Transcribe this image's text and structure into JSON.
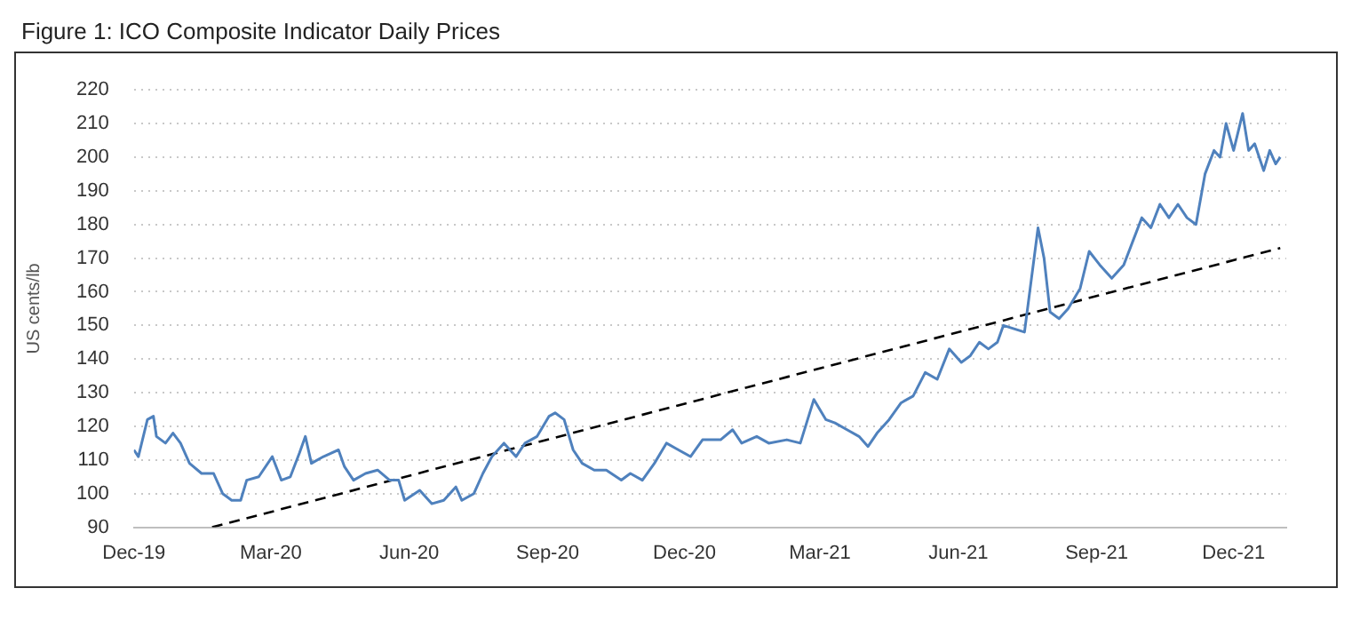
{
  "chart_data": {
    "type": "line",
    "title": "Figure 1: ICO Composite Indicator Daily Prices",
    "ylabel": "US cents/lb",
    "xlim": [
      "2019-12-01",
      "2022-01-05"
    ],
    "xticks": [
      {
        "value": "2019-12-01",
        "label": "Dec-19"
      },
      {
        "value": "2020-03-01",
        "label": "Mar-20"
      },
      {
        "value": "2020-06-01",
        "label": "Jun-20"
      },
      {
        "value": "2020-09-01",
        "label": "Sep-20"
      },
      {
        "value": "2020-12-01",
        "label": "Dec-20"
      },
      {
        "value": "2021-03-01",
        "label": "Mar-21"
      },
      {
        "value": "2021-06-01",
        "label": "Jun-21"
      },
      {
        "value": "2021-09-01",
        "label": "Sep-21"
      },
      {
        "value": "2021-12-01",
        "label": "Dec-21"
      }
    ],
    "ylim": [
      90,
      220
    ],
    "yticks": [
      90,
      100,
      110,
      120,
      130,
      140,
      150,
      160,
      170,
      180,
      190,
      200,
      210,
      220
    ],
    "grid": "y",
    "marker": "none",
    "series": [
      {
        "color": "#4f81bd",
        "line_style": "solid",
        "x": [
          "2019-12-01",
          "2019-12-04",
          "2019-12-10",
          "2019-12-14",
          "2019-12-16",
          "2019-12-22",
          "2019-12-27",
          "2020-01-01",
          "2020-01-07",
          "2020-01-15",
          "2020-01-23",
          "2020-01-29",
          "2020-02-04",
          "2020-02-10",
          "2020-02-14",
          "2020-02-22",
          "2020-03-02",
          "2020-03-08",
          "2020-03-14",
          "2020-03-20",
          "2020-03-24",
          "2020-03-28",
          "2020-04-05",
          "2020-04-15",
          "2020-04-19",
          "2020-04-25",
          "2020-05-03",
          "2020-05-11",
          "2020-05-19",
          "2020-05-25",
          "2020-05-29",
          "2020-06-08",
          "2020-06-16",
          "2020-06-24",
          "2020-07-02",
          "2020-07-06",
          "2020-07-14",
          "2020-07-20",
          "2020-07-26",
          "2020-08-03",
          "2020-08-11",
          "2020-08-17",
          "2020-08-25",
          "2020-09-02",
          "2020-09-06",
          "2020-09-12",
          "2020-09-18",
          "2020-09-24",
          "2020-10-02",
          "2020-10-10",
          "2020-10-20",
          "2020-10-26",
          "2020-11-03",
          "2020-11-11",
          "2020-11-19",
          "2020-11-27",
          "2020-12-05",
          "2020-12-13",
          "2020-12-25",
          "2021-01-02",
          "2021-01-08",
          "2021-01-18",
          "2021-01-26",
          "2021-02-07",
          "2021-02-16",
          "2021-02-25",
          "2021-03-05",
          "2021-03-11",
          "2021-03-19",
          "2021-03-27",
          "2021-04-02",
          "2021-04-08",
          "2021-04-16",
          "2021-04-24",
          "2021-05-02",
          "2021-05-10",
          "2021-05-18",
          "2021-05-26",
          "2021-06-03",
          "2021-06-09",
          "2021-06-15",
          "2021-06-21",
          "2021-06-27",
          "2021-07-01",
          "2021-07-15",
          "2021-07-24",
          "2021-07-28",
          "2021-08-01",
          "2021-08-07",
          "2021-08-13",
          "2021-08-21",
          "2021-08-27",
          "2021-09-03",
          "2021-09-11",
          "2021-09-19",
          "2021-09-25",
          "2021-10-01",
          "2021-10-07",
          "2021-10-13",
          "2021-10-19",
          "2021-10-25",
          "2021-10-31",
          "2021-11-06",
          "2021-11-12",
          "2021-11-18",
          "2021-11-22",
          "2021-11-26",
          "2021-12-01",
          "2021-12-07",
          "2021-12-11",
          "2021-12-15",
          "2021-12-21",
          "2021-12-25",
          "2021-12-29",
          "2022-01-01"
        ],
        "values": [
          113,
          111,
          122,
          123,
          117,
          115,
          118,
          115,
          109,
          106,
          106,
          100,
          98,
          98,
          104,
          105,
          111,
          104,
          105,
          112,
          117,
          109,
          111,
          113,
          108,
          104,
          106,
          107,
          104,
          104,
          98,
          101,
          97,
          98,
          102,
          98,
          100,
          106,
          111,
          115,
          111,
          115,
          117,
          123,
          124,
          122,
          113,
          109,
          107,
          107,
          104,
          106,
          104,
          109,
          115,
          113,
          111,
          116,
          116,
          119,
          115,
          117,
          115,
          116,
          115,
          128,
          122,
          121,
          119,
          117,
          114,
          118,
          122,
          127,
          129,
          136,
          134,
          143,
          139,
          141,
          145,
          143,
          145,
          150,
          148,
          179,
          170,
          154,
          152,
          155,
          161,
          172,
          168,
          164,
          168,
          175,
          182,
          179,
          186,
          182,
          186,
          182,
          180,
          195,
          202,
          200,
          210,
          202,
          213,
          202,
          204,
          196,
          202,
          198,
          200
        ]
      },
      {
        "type": "line",
        "color": "#000000",
        "line_style": "dashed",
        "x": [
          "2020-01-22",
          "2022-01-01"
        ],
        "values": [
          90,
          173
        ]
      }
    ]
  }
}
